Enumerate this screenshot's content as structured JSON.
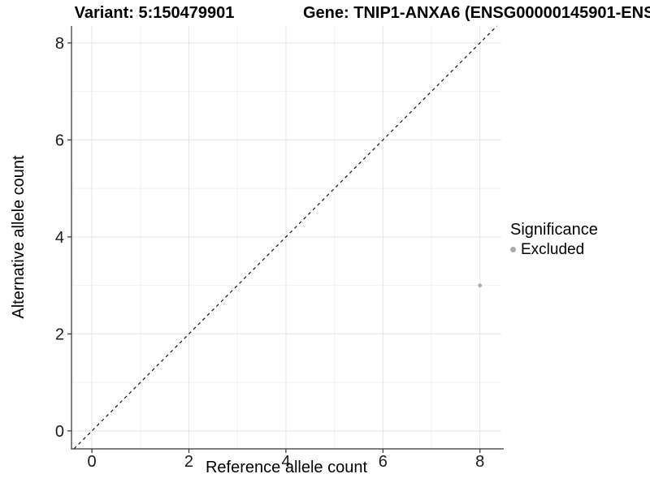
{
  "titles": {
    "variant": "Variant: 5:150479901",
    "gene": "Gene: TNIP1-ANXA6 (ENSG00000145901-ENS"
  },
  "axes": {
    "x_label": "Reference allele count",
    "y_label": "Alternative allele count"
  },
  "legend": {
    "title": "Significance",
    "position": "right",
    "items": [
      {
        "label": "Excluded",
        "color": "#aaaaaa"
      }
    ]
  },
  "colors": {
    "point": "#ababab",
    "grid_major": "#e4e4e4",
    "grid_minor": "#f1f1f1",
    "axis_line": "#333333",
    "tick_mark": "#333333",
    "tick_label": "#1a1a1a",
    "identity_line": "#000000",
    "background": "#ffffff"
  },
  "chart_data": {
    "type": "scatter",
    "title": "Variant: 5:150479901 — Gene: TNIP1-ANXA6 (ENSG00000145901-ENS…)",
    "xlabel": "Reference allele count",
    "ylabel": "Alternative allele count",
    "xlim": [
      -0.42,
      8.44
    ],
    "ylim": [
      -0.37,
      8.35
    ],
    "x_major_ticks": [
      0,
      2,
      4,
      6,
      8
    ],
    "y_major_ticks": [
      0,
      2,
      4,
      6,
      8
    ],
    "x_minor_ticks": [
      1,
      3,
      5,
      7
    ],
    "y_minor_ticks": [
      1,
      3,
      5,
      7
    ],
    "grid": true,
    "legend_position": "right",
    "identity_line": {
      "slope": 1,
      "intercept": 0,
      "dashed": true
    },
    "series": [
      {
        "name": "Excluded",
        "color": "#ababab",
        "point_radius": 2.4,
        "points": [
          {
            "x": 8,
            "y": 3
          }
        ]
      }
    ]
  }
}
